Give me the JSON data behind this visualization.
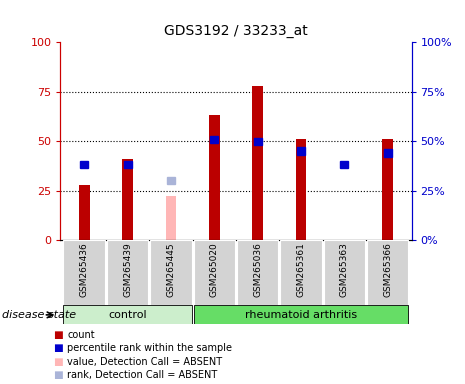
{
  "title": "GDS3192 / 33233_at",
  "samples": [
    "GSM265436",
    "GSM265439",
    "GSM265445",
    "GSM265020",
    "GSM265036",
    "GSM265361",
    "GSM265363",
    "GSM265366"
  ],
  "groups": [
    "control",
    "control",
    "control",
    "rheumatoid arthritis",
    "rheumatoid arthritis",
    "rheumatoid arthritis",
    "rheumatoid arthritis",
    "rheumatoid arthritis"
  ],
  "count_values": [
    28,
    41,
    null,
    63,
    78,
    51,
    null,
    51
  ],
  "count_absent_values": [
    null,
    null,
    22,
    null,
    null,
    null,
    null,
    null
  ],
  "rank_values": [
    38,
    38,
    null,
    51,
    50,
    45,
    38,
    44
  ],
  "rank_absent_values": [
    null,
    null,
    30,
    null,
    null,
    null,
    null,
    null
  ],
  "ylim": [
    0,
    100
  ],
  "yticks": [
    0,
    25,
    50,
    75,
    100
  ],
  "left_axis_color": "#cc0000",
  "right_axis_color": "#0000cc",
  "count_color": "#bb0000",
  "count_absent_color": "#ffb6b6",
  "rank_color": "#0000cc",
  "rank_absent_color": "#aab4d8",
  "control_bg": "#cceecc",
  "ra_bg": "#66dd66",
  "sample_bg": "#d3d3d3",
  "disease_state_label": "disease state"
}
